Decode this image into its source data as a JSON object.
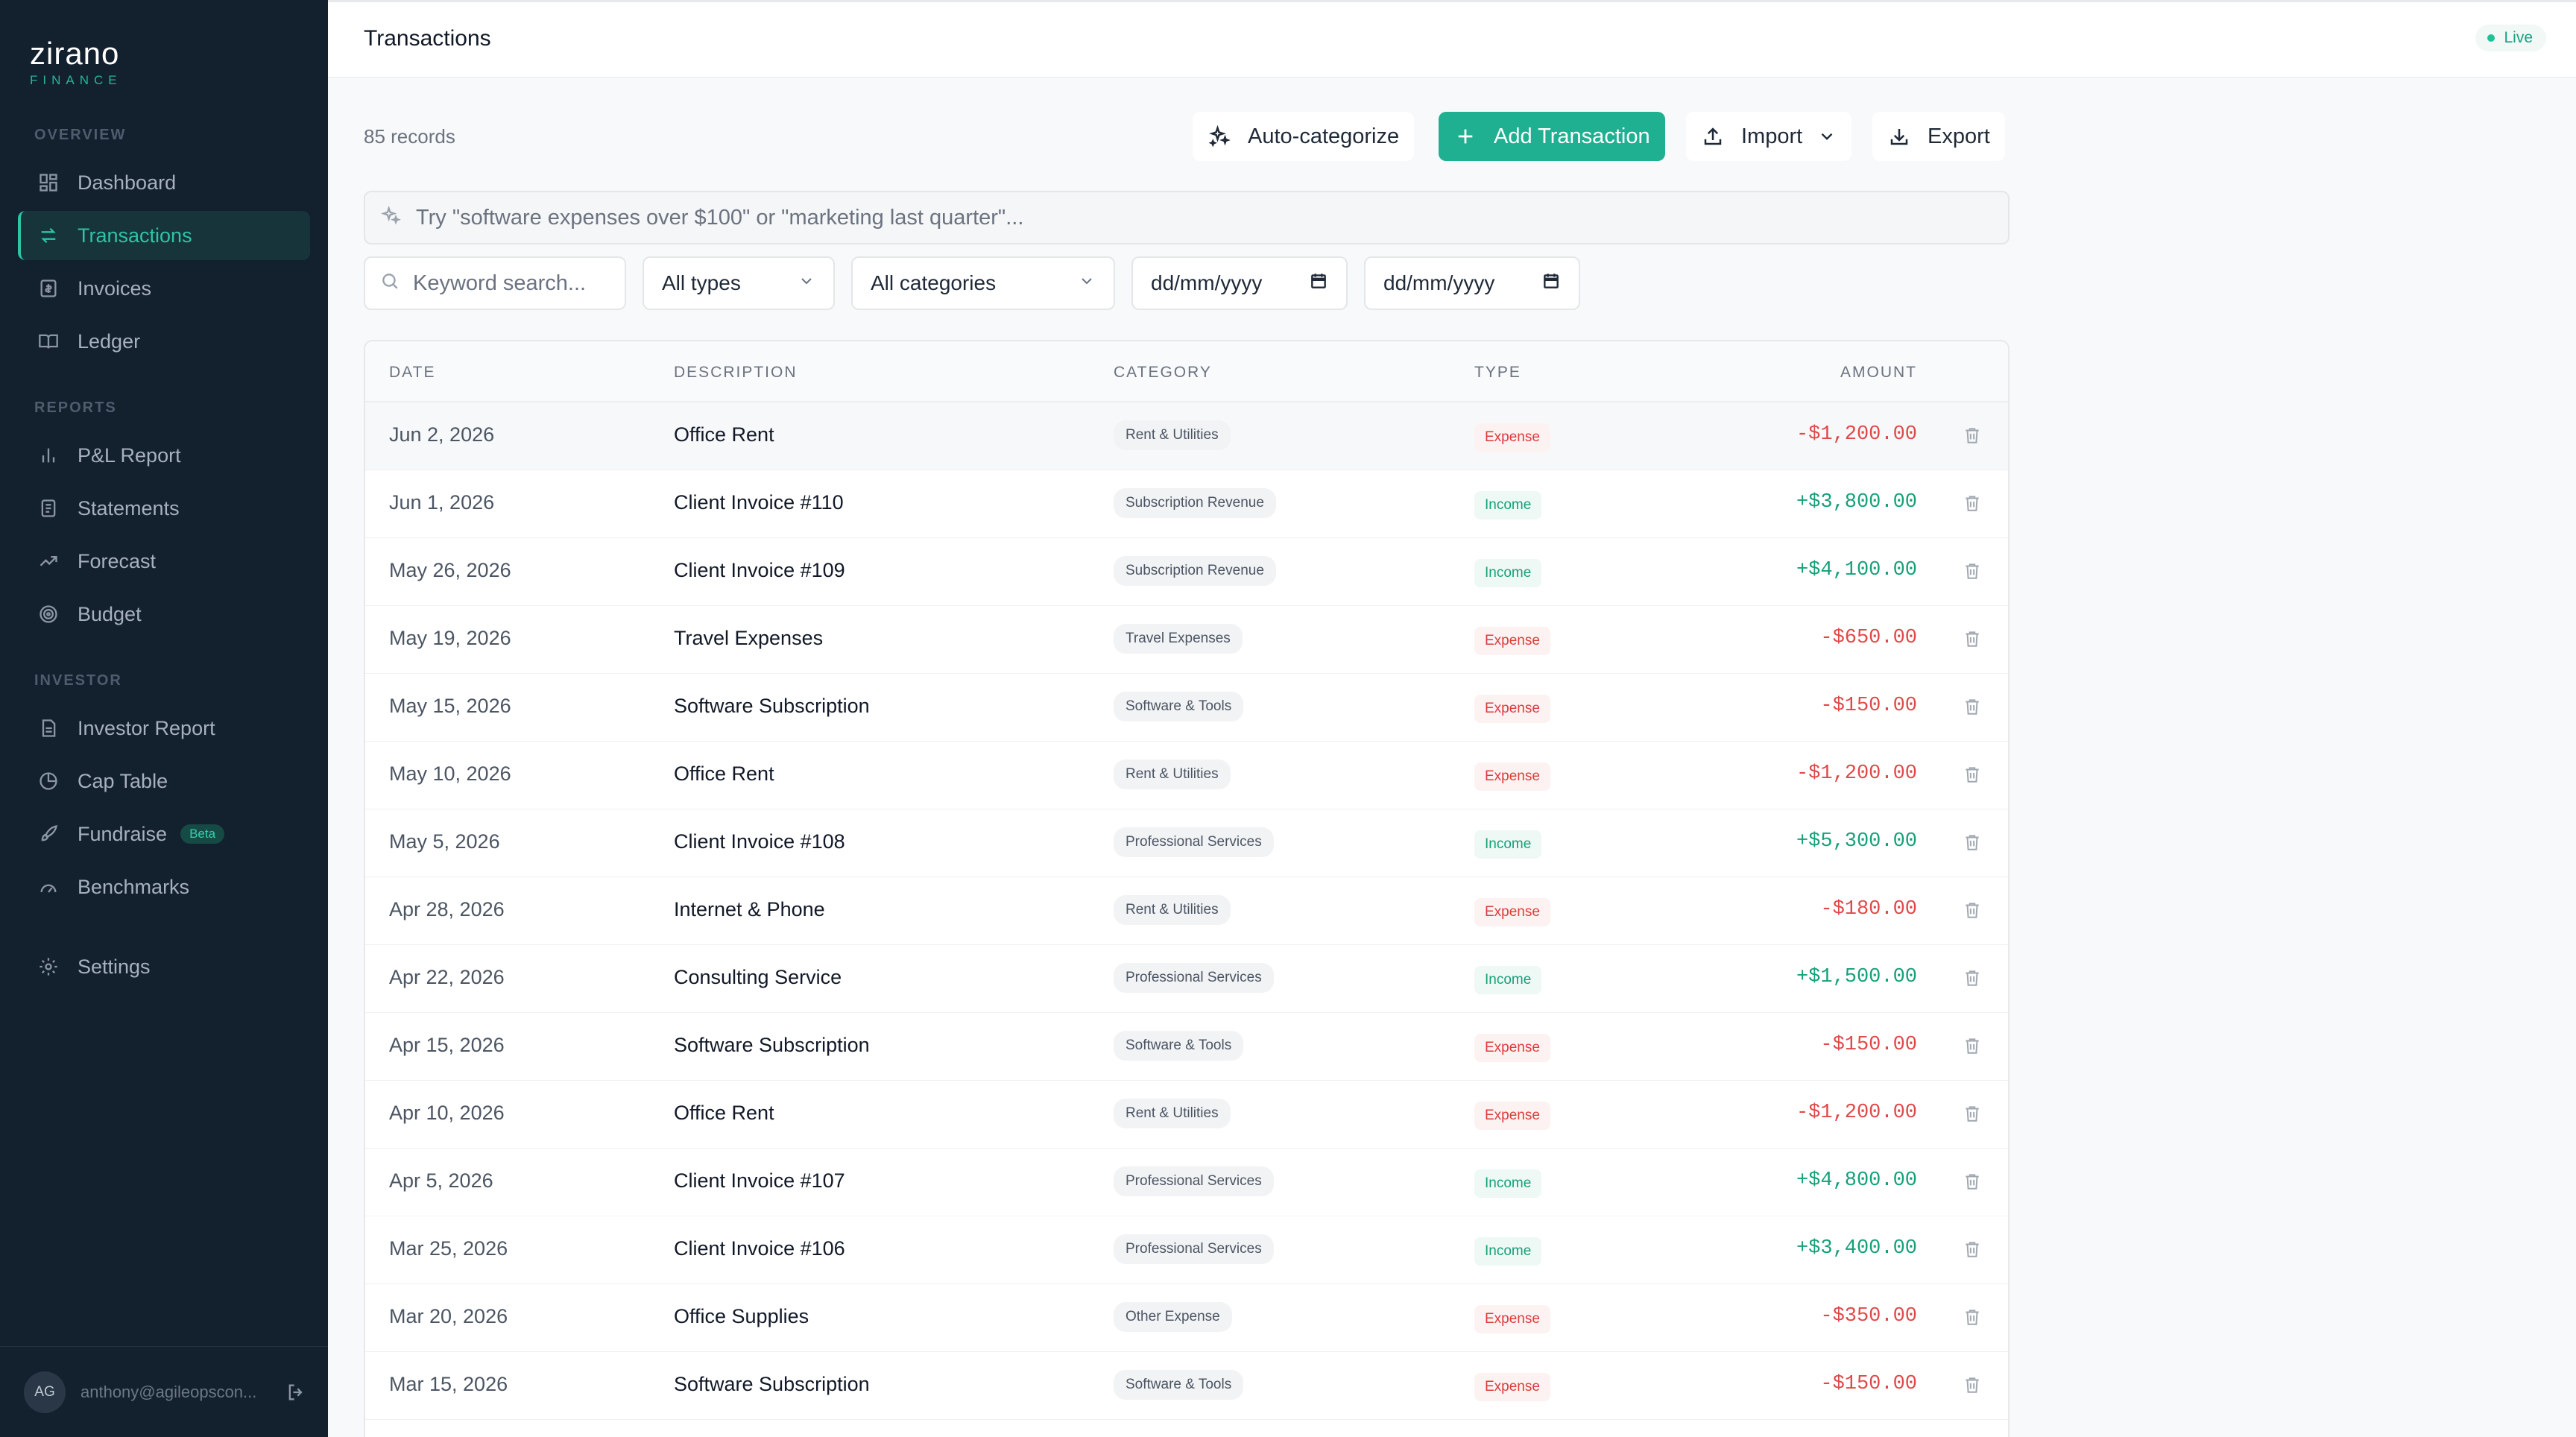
{
  "brand": {
    "name": "zirano",
    "sub": "FINANCE"
  },
  "sidebar": {
    "sections": [
      "OVERVIEW",
      "REPORTS",
      "INVESTOR"
    ],
    "items": [
      {
        "label": "Dashboard",
        "icon": "dashboard-icon"
      },
      {
        "label": "Transactions",
        "icon": "transfer-icon",
        "active": true
      },
      {
        "label": "Invoices",
        "icon": "invoice-icon"
      },
      {
        "label": "Ledger",
        "icon": "book-icon"
      },
      {
        "label": "P&L Report",
        "icon": "bar-chart-icon"
      },
      {
        "label": "Statements",
        "icon": "document-icon"
      },
      {
        "label": "Forecast",
        "icon": "trend-up-icon"
      },
      {
        "label": "Budget",
        "icon": "target-icon"
      },
      {
        "label": "Investor Report",
        "icon": "report-icon"
      },
      {
        "label": "Cap Table",
        "icon": "pie-chart-icon"
      },
      {
        "label": "Fundraise",
        "icon": "rocket-icon",
        "badge": "Beta"
      },
      {
        "label": "Benchmarks",
        "icon": "gauge-icon"
      },
      {
        "label": "Settings",
        "icon": "gear-icon"
      }
    ],
    "user": {
      "initials": "AG",
      "email": "anthony@agileopscon..."
    }
  },
  "header": {
    "title": "Transactions",
    "status": "Live"
  },
  "toolbar": {
    "records": "85 records",
    "auto_categorize": "Auto-categorize",
    "add_transaction": "Add Transaction",
    "import": "Import",
    "export": "Export"
  },
  "search": {
    "smart_placeholder": "Try \"software expenses over $100\" or \"marketing last quarter\"...",
    "keyword_placeholder": "Keyword search...",
    "type_filter": "All types",
    "category_filter": "All categories",
    "date_from": "dd/mm/yyyy",
    "date_to": "dd/mm/yyyy"
  },
  "table": {
    "columns": [
      "DATE",
      "DESCRIPTION",
      "CATEGORY",
      "TYPE",
      "AMOUNT"
    ],
    "rows": [
      {
        "date": "Jun 2, 2026",
        "description": "Office Rent",
        "category": "Rent & Utilities",
        "type": "Expense",
        "amount": "-$1,200.00"
      },
      {
        "date": "Jun 1, 2026",
        "description": "Client Invoice #110",
        "category": "Subscription Revenue",
        "type": "Income",
        "amount": "+$3,800.00"
      },
      {
        "date": "May 26, 2026",
        "description": "Client Invoice #109",
        "category": "Subscription Revenue",
        "type": "Income",
        "amount": "+$4,100.00"
      },
      {
        "date": "May 19, 2026",
        "description": "Travel Expenses",
        "category": "Travel Expenses",
        "type": "Expense",
        "amount": "-$650.00"
      },
      {
        "date": "May 15, 2026",
        "description": "Software Subscription",
        "category": "Software & Tools",
        "type": "Expense",
        "amount": "-$150.00"
      },
      {
        "date": "May 10, 2026",
        "description": "Office Rent",
        "category": "Rent & Utilities",
        "type": "Expense",
        "amount": "-$1,200.00"
      },
      {
        "date": "May 5, 2026",
        "description": "Client Invoice #108",
        "category": "Professional Services",
        "type": "Income",
        "amount": "+$5,300.00"
      },
      {
        "date": "Apr 28, 2026",
        "description": "Internet & Phone",
        "category": "Rent & Utilities",
        "type": "Expense",
        "amount": "-$180.00"
      },
      {
        "date": "Apr 22, 2026",
        "description": "Consulting Service",
        "category": "Professional Services",
        "type": "Income",
        "amount": "+$1,500.00"
      },
      {
        "date": "Apr 15, 2026",
        "description": "Software Subscription",
        "category": "Software & Tools",
        "type": "Expense",
        "amount": "-$150.00"
      },
      {
        "date": "Apr 10, 2026",
        "description": "Office Rent",
        "category": "Rent & Utilities",
        "type": "Expense",
        "amount": "-$1,200.00"
      },
      {
        "date": "Apr 5, 2026",
        "description": "Client Invoice #107",
        "category": "Professional Services",
        "type": "Income",
        "amount": "+$4,800.00"
      },
      {
        "date": "Mar 25, 2026",
        "description": "Client Invoice #106",
        "category": "Professional Services",
        "type": "Income",
        "amount": "+$3,400.00"
      },
      {
        "date": "Mar 20, 2026",
        "description": "Office Supplies",
        "category": "Other Expense",
        "type": "Expense",
        "amount": "-$350.00"
      },
      {
        "date": "Mar 15, 2026",
        "description": "Software Subscription",
        "category": "Software & Tools",
        "type": "Expense",
        "amount": "-$150.00"
      }
    ]
  },
  "colors": {
    "sidebar_bg": "#13202e",
    "accent": "#1eb090",
    "expense": "#e04848",
    "income": "#15a079"
  }
}
